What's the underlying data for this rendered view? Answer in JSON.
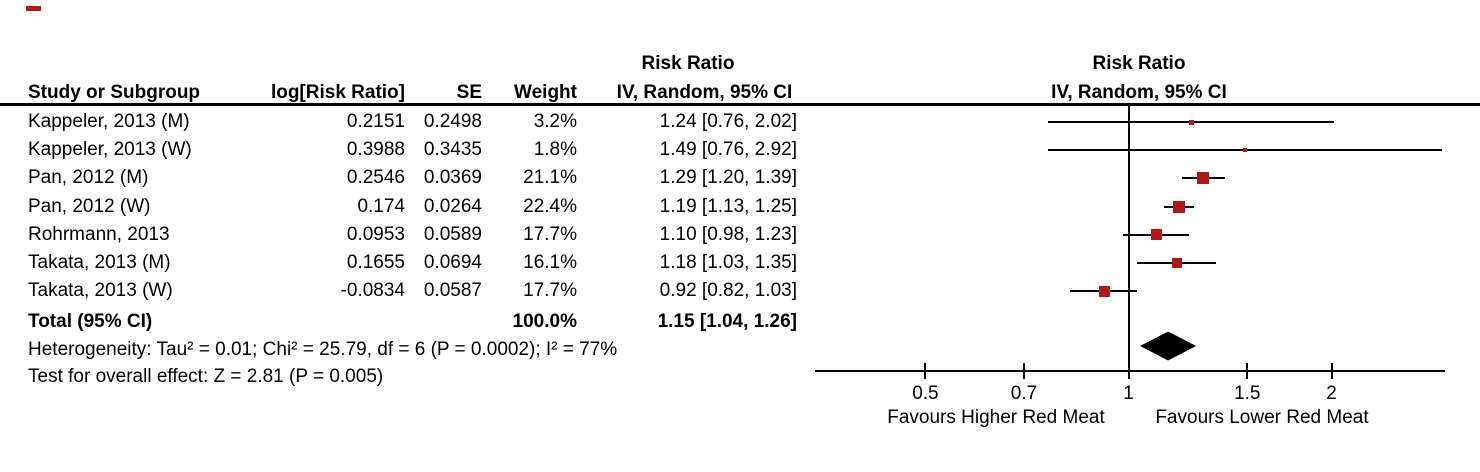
{
  "table": {
    "header": {
      "risk_ratio_title": "Risk Ratio",
      "study": "Study or Subgroup",
      "log_rr": "log[Risk Ratio]",
      "se": "SE",
      "weight": "Weight",
      "method_ci": "IV, Random, 95% CI"
    },
    "rows": [
      {
        "study": "Kappeler, 2013 (M)",
        "log_rr": "0.2151",
        "se": "0.2498",
        "weight": "3.2%",
        "rr_ci": "1.24 [0.76, 2.02]"
      },
      {
        "study": "Kappeler, 2013 (W)",
        "log_rr": "0.3988",
        "se": "0.3435",
        "weight": "1.8%",
        "rr_ci": "1.49 [0.76, 2.92]"
      },
      {
        "study": "Pan, 2012 (M)",
        "log_rr": "0.2546",
        "se": "0.0369",
        "weight": "21.1%",
        "rr_ci": "1.29 [1.20, 1.39]"
      },
      {
        "study": "Pan, 2012 (W)",
        "log_rr": "0.174",
        "se": "0.0264",
        "weight": "22.4%",
        "rr_ci": "1.19 [1.13, 1.25]"
      },
      {
        "study": "Rohrmann, 2013",
        "log_rr": "0.0953",
        "se": "0.0589",
        "weight": "17.7%",
        "rr_ci": "1.10 [0.98, 1.23]"
      },
      {
        "study": "Takata, 2013 (M)",
        "log_rr": "0.1655",
        "se": "0.0694",
        "weight": "16.1%",
        "rr_ci": "1.18 [1.03, 1.35]"
      },
      {
        "study": "Takata, 2013 (W)",
        "log_rr": "-0.0834",
        "se": "0.0587",
        "weight": "17.7%",
        "rr_ci": "0.92 [0.82, 1.03]"
      }
    ],
    "total": {
      "label": "Total (95% CI)",
      "weight": "100.0%",
      "rr_ci": "1.15 [1.04, 1.26]"
    },
    "footer": {
      "heterogeneity": "Heterogeneity: Tau² = 0.01; Chi² = 25.79, df = 6 (P = 0.0002); I² = 77%",
      "overall_effect": "Test for overall effect: Z = 2.81 (P = 0.005)"
    }
  },
  "plot": {
    "header_title": "Risk Ratio",
    "header_sub": "IV, Random, 95% CI",
    "marker_color": "#b01818",
    "line_color": "#000000",
    "diamond_color": "#000000"
  },
  "chart_data": {
    "type": "scatter",
    "subtype": "forest-plot-meta-analysis",
    "title": "Risk Ratio",
    "model": "IV, Random, 95% CI",
    "x_scale": "log",
    "x_ticks": [
      "0.5",
      "0.7",
      "1",
      "1.5",
      "2"
    ],
    "x_range": [
      0.34,
      2.95
    ],
    "null_line": 1,
    "xlabel_left": "Favours Higher Red Meat",
    "xlabel_right": "Favours Lower Red Meat",
    "studies": [
      {
        "name": "Kappeler, 2013 (M)",
        "log_rr": 0.2151,
        "se": 0.2498,
        "weight_pct": 3.2,
        "rr": 1.24,
        "ci_low": 0.76,
        "ci_high": 2.02
      },
      {
        "name": "Kappeler, 2013 (W)",
        "log_rr": 0.3988,
        "se": 0.3435,
        "weight_pct": 1.8,
        "rr": 1.49,
        "ci_low": 0.76,
        "ci_high": 2.92
      },
      {
        "name": "Pan, 2012 (M)",
        "log_rr": 0.2546,
        "se": 0.0369,
        "weight_pct": 21.1,
        "rr": 1.29,
        "ci_low": 1.2,
        "ci_high": 1.39
      },
      {
        "name": "Pan, 2012 (W)",
        "log_rr": 0.174,
        "se": 0.0264,
        "weight_pct": 22.4,
        "rr": 1.19,
        "ci_low": 1.13,
        "ci_high": 1.25
      },
      {
        "name": "Rohrmann, 2013",
        "log_rr": 0.0953,
        "se": 0.0589,
        "weight_pct": 17.7,
        "rr": 1.1,
        "ci_low": 0.98,
        "ci_high": 1.23
      },
      {
        "name": "Takata, 2013 (M)",
        "log_rr": 0.1655,
        "se": 0.0694,
        "weight_pct": 16.1,
        "rr": 1.18,
        "ci_low": 1.03,
        "ci_high": 1.35
      },
      {
        "name": "Takata, 2013 (W)",
        "log_rr": -0.0834,
        "se": 0.0587,
        "weight_pct": 17.7,
        "rr": 0.92,
        "ci_low": 0.82,
        "ci_high": 1.03
      }
    ],
    "total": {
      "name": "Total (95% CI)",
      "weight_pct": 100.0,
      "rr": 1.15,
      "ci_low": 1.04,
      "ci_high": 1.26
    },
    "heterogeneity": "Heterogeneity: Tau² = 0.01; Chi² = 25.79, df = 6 (P = 0.0002); I² = 77%",
    "overall_effect": "Test for overall effect: Z = 2.81 (P = 0.005)"
  }
}
